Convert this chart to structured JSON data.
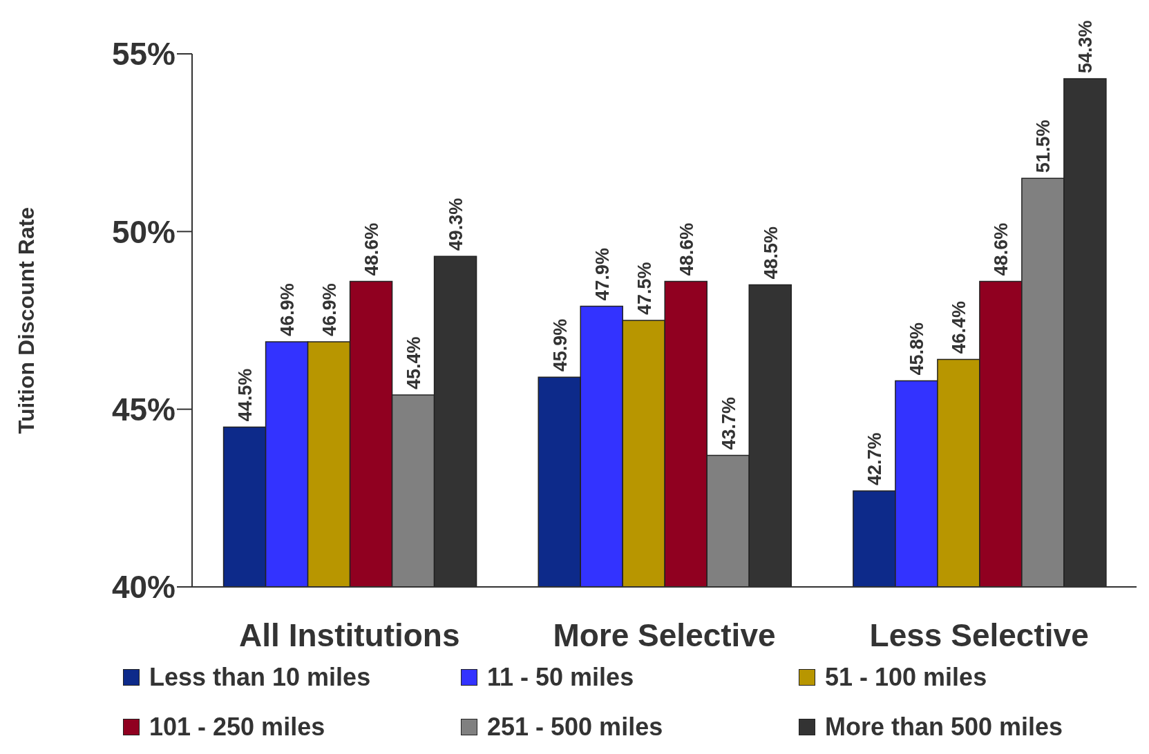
{
  "chart_data": {
    "type": "bar",
    "ylabel": "Tuition Discount Rate",
    "categories": [
      "All Institutions",
      "More Selective",
      "Less Selective"
    ],
    "series": [
      {
        "name": "Less than 10 miles",
        "color": "#0d2a8a",
        "values": [
          44.5,
          45.9,
          42.7
        ],
        "value_labels": [
          "44.5%",
          "45.9%",
          "42.7%"
        ]
      },
      {
        "name": "11 - 50 miles",
        "color": "#3333ff",
        "values": [
          46.9,
          47.9,
          45.8
        ],
        "value_labels": [
          "46.9%",
          "47.9%",
          "45.8%"
        ]
      },
      {
        "name": "51 - 100 miles",
        "color": "#b89600",
        "values": [
          46.9,
          47.5,
          46.4
        ],
        "value_labels": [
          "46.9%",
          "47.5%",
          "46.4%"
        ]
      },
      {
        "name": "101 - 250 miles",
        "color": "#900020",
        "values": [
          48.6,
          48.6,
          48.6
        ],
        "value_labels": [
          "48.6%",
          "48.6%",
          "48.6%"
        ]
      },
      {
        "name": "251 - 500 miles",
        "color": "#808080",
        "values": [
          45.4,
          43.7,
          51.5
        ],
        "value_labels": [
          "45.4%",
          "43.7%",
          "51.5%"
        ]
      },
      {
        "name": "More than 500 miles",
        "color": "#333333",
        "values": [
          49.3,
          48.5,
          54.3
        ],
        "value_labels": [
          "49.3%",
          "48.5%",
          "54.3%"
        ]
      }
    ],
    "ylim": [
      40,
      55
    ],
    "yticks": [
      {
        "value": 40,
        "label": "40%"
      },
      {
        "value": 45,
        "label": "45%"
      },
      {
        "value": 50,
        "label": "50%"
      },
      {
        "value": 55,
        "label": "55%"
      }
    ],
    "grid": false,
    "legend": "bottom"
  }
}
